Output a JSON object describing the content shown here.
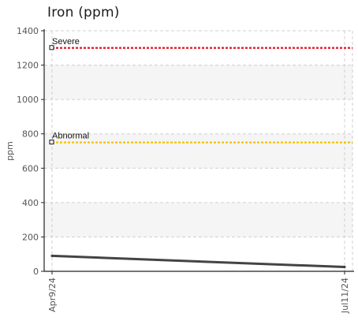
{
  "chart_data": {
    "type": "line",
    "title": "Iron (ppm)",
    "xlabel": "",
    "ylabel": "ppm",
    "ylim": [
      0,
      1400
    ],
    "y_ticks": [
      "0",
      "200",
      "400",
      "600",
      "800",
      "1000",
      "1200",
      "1400"
    ],
    "x_tick_labels": [
      "Apr9/24",
      "Jul11/24"
    ],
    "grid": true,
    "series": [
      {
        "x": [
          "Apr9/24",
          "Jul11/24"
        ],
        "values": [
          90,
          25
        ],
        "color": "#444444"
      }
    ],
    "thresholds": [
      {
        "name": "Severe",
        "value": 1300,
        "color": "#e8141f"
      },
      {
        "name": "Abnormal",
        "value": 750,
        "color": "#f2c400"
      }
    ],
    "colors": {
      "band": "#f5f5f5",
      "grid": "#cfcfcf",
      "axis": "#222222"
    }
  }
}
